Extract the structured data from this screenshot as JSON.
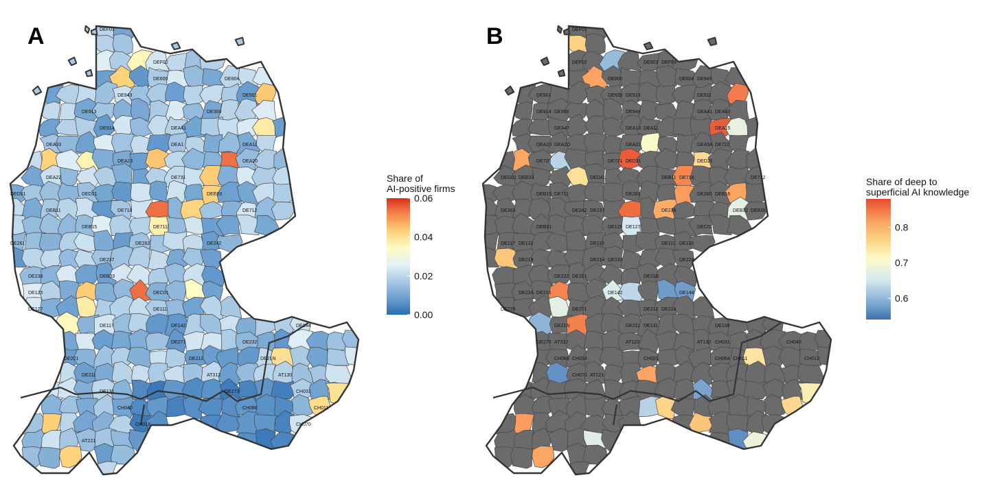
{
  "panels": [
    {
      "id": "A",
      "letter": "A",
      "legend": {
        "title_lines": [
          "Share of",
          "AI-positive firms"
        ],
        "ticks": [
          "0.06",
          "0.04",
          "0.02",
          "0.00"
        ],
        "min": 0.0,
        "max": 0.06,
        "colors": [
          "#2c6db2",
          "#6b9fcf",
          "#a9c9e4",
          "#e4f1f7",
          "#fdfcc4",
          "#fdd279",
          "#f88a4f",
          "#d7301f"
        ]
      },
      "region_labels": [
        "DEF01",
        "DEF02",
        "DE600",
        "DE804",
        "DE943",
        "DE501",
        "DE913",
        "DE300",
        "DE914",
        "DEA41",
        "DEA33",
        "DEA1",
        "DEA11",
        "DEA23",
        "DEA20",
        "DEA22",
        "DE731",
        "DED31",
        "DED21",
        "DEE03",
        "DEB11",
        "DE718",
        "DE712",
        "DEB15",
        "DE711",
        "DE261",
        "DE263",
        "DE242",
        "DE237",
        "DE238",
        "DEB33",
        "DE125",
        "DEC01",
        "DE127",
        "DE111",
        "DE117",
        "DE142",
        "DE144",
        "DE271",
        "DE232",
        "DE221",
        "DE212",
        "DE21N",
        "DE211",
        "AT312",
        "AT130",
        "DE131",
        "DE273",
        "CH031",
        "CH040",
        "CH066",
        "CH011",
        "CH013",
        "CH070",
        "AT221"
      ]
    },
    {
      "id": "B",
      "letter": "B",
      "legend": {
        "title_lines": [
          "Share of deep to",
          "superficial AI knowledge"
        ],
        "ticks": [
          "0.8",
          "0.7",
          "0.6"
        ],
        "min": 0.54,
        "max": 0.88,
        "colors": [
          "#3f72b3",
          "#8db4d8",
          "#d8e9f2",
          "#fbfbc8",
          "#fdd182",
          "#f99b5c",
          "#e5492f"
        ]
      },
      "region_labels": [
        "DEF01",
        "DEF02",
        "DE803",
        "DEF03",
        "DE600",
        "DE804",
        "DE943",
        "DE501",
        "DE929",
        "DE913",
        "DE911",
        "DE914",
        "DE300",
        "DE944",
        "DEA41",
        "DEA33",
        "DEA47",
        "DEA13",
        "DEA11",
        "DEA15",
        "DEA23",
        "DEA2D",
        "DEA22",
        "DEA5A",
        "DE722",
        "DE726",
        "DE731",
        "DED31",
        "DED21",
        "DEG01",
        "DEE03",
        "DED41",
        "DEB11",
        "DE718",
        "DE712",
        "DEB15",
        "DE711",
        "DE261",
        "DE260",
        "DEB16",
        "DE263",
        "DE242",
        "DE237",
        "DE238",
        "DEB32",
        "DE839",
        "DEB31",
        "DE125",
        "DE127",
        "DEC01",
        "DE117",
        "DE122",
        "DE115",
        "DE111",
        "DE119",
        "DE219",
        "DE214",
        "DE232",
        "DE224",
        "DE222",
        "DE221",
        "DE21B",
        "DE22A",
        "DE215",
        "DE142",
        "DE144",
        "DE279",
        "DE271",
        "DE212",
        "DE218",
        "DE21N",
        "DE211",
        "DE131",
        "DE136",
        "DE273",
        "AT312",
        "AT123",
        "AT130",
        "CH031",
        "CH040",
        "CH066",
        "CH024",
        "CH021",
        "CH064",
        "CH011",
        "CH013",
        "CH070",
        "AT221"
      ]
    }
  ]
}
